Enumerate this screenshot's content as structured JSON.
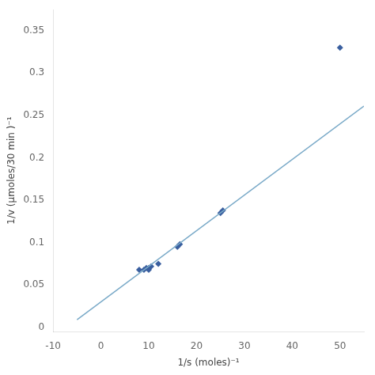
{
  "chart_data": {
    "type": "scatter",
    "xlabel": "1/s (moles)⁻¹",
    "ylabel": "1/v (μmoles/30 min )⁻¹",
    "series": [
      {
        "type": "line",
        "color": "#7aaac8",
        "x": [
          -5,
          55
        ],
        "values": [
          0.009,
          0.261
        ]
      },
      {
        "type": "scatter",
        "color": "#3a5f9f",
        "marker": "diamond",
        "x": [
          8.0,
          9.0,
          9.5,
          10.0,
          10.0,
          10.5,
          12.0,
          16.0,
          16.5,
          25.0,
          25.5,
          50.0
        ],
        "values": [
          0.068,
          0.068,
          0.07,
          0.068,
          0.07,
          0.072,
          0.075,
          0.095,
          0.098,
          0.135,
          0.138,
          0.33
        ]
      }
    ],
    "xlim": [
      -10,
      55
    ],
    "ylim": [
      -0.005,
      0.375
    ],
    "xticks": [
      -10,
      0,
      10,
      20,
      30,
      40,
      50
    ],
    "yticks": [
      0,
      0.05,
      0.1,
      0.15,
      0.2,
      0.25,
      0.3,
      0.35
    ],
    "grid": false
  }
}
